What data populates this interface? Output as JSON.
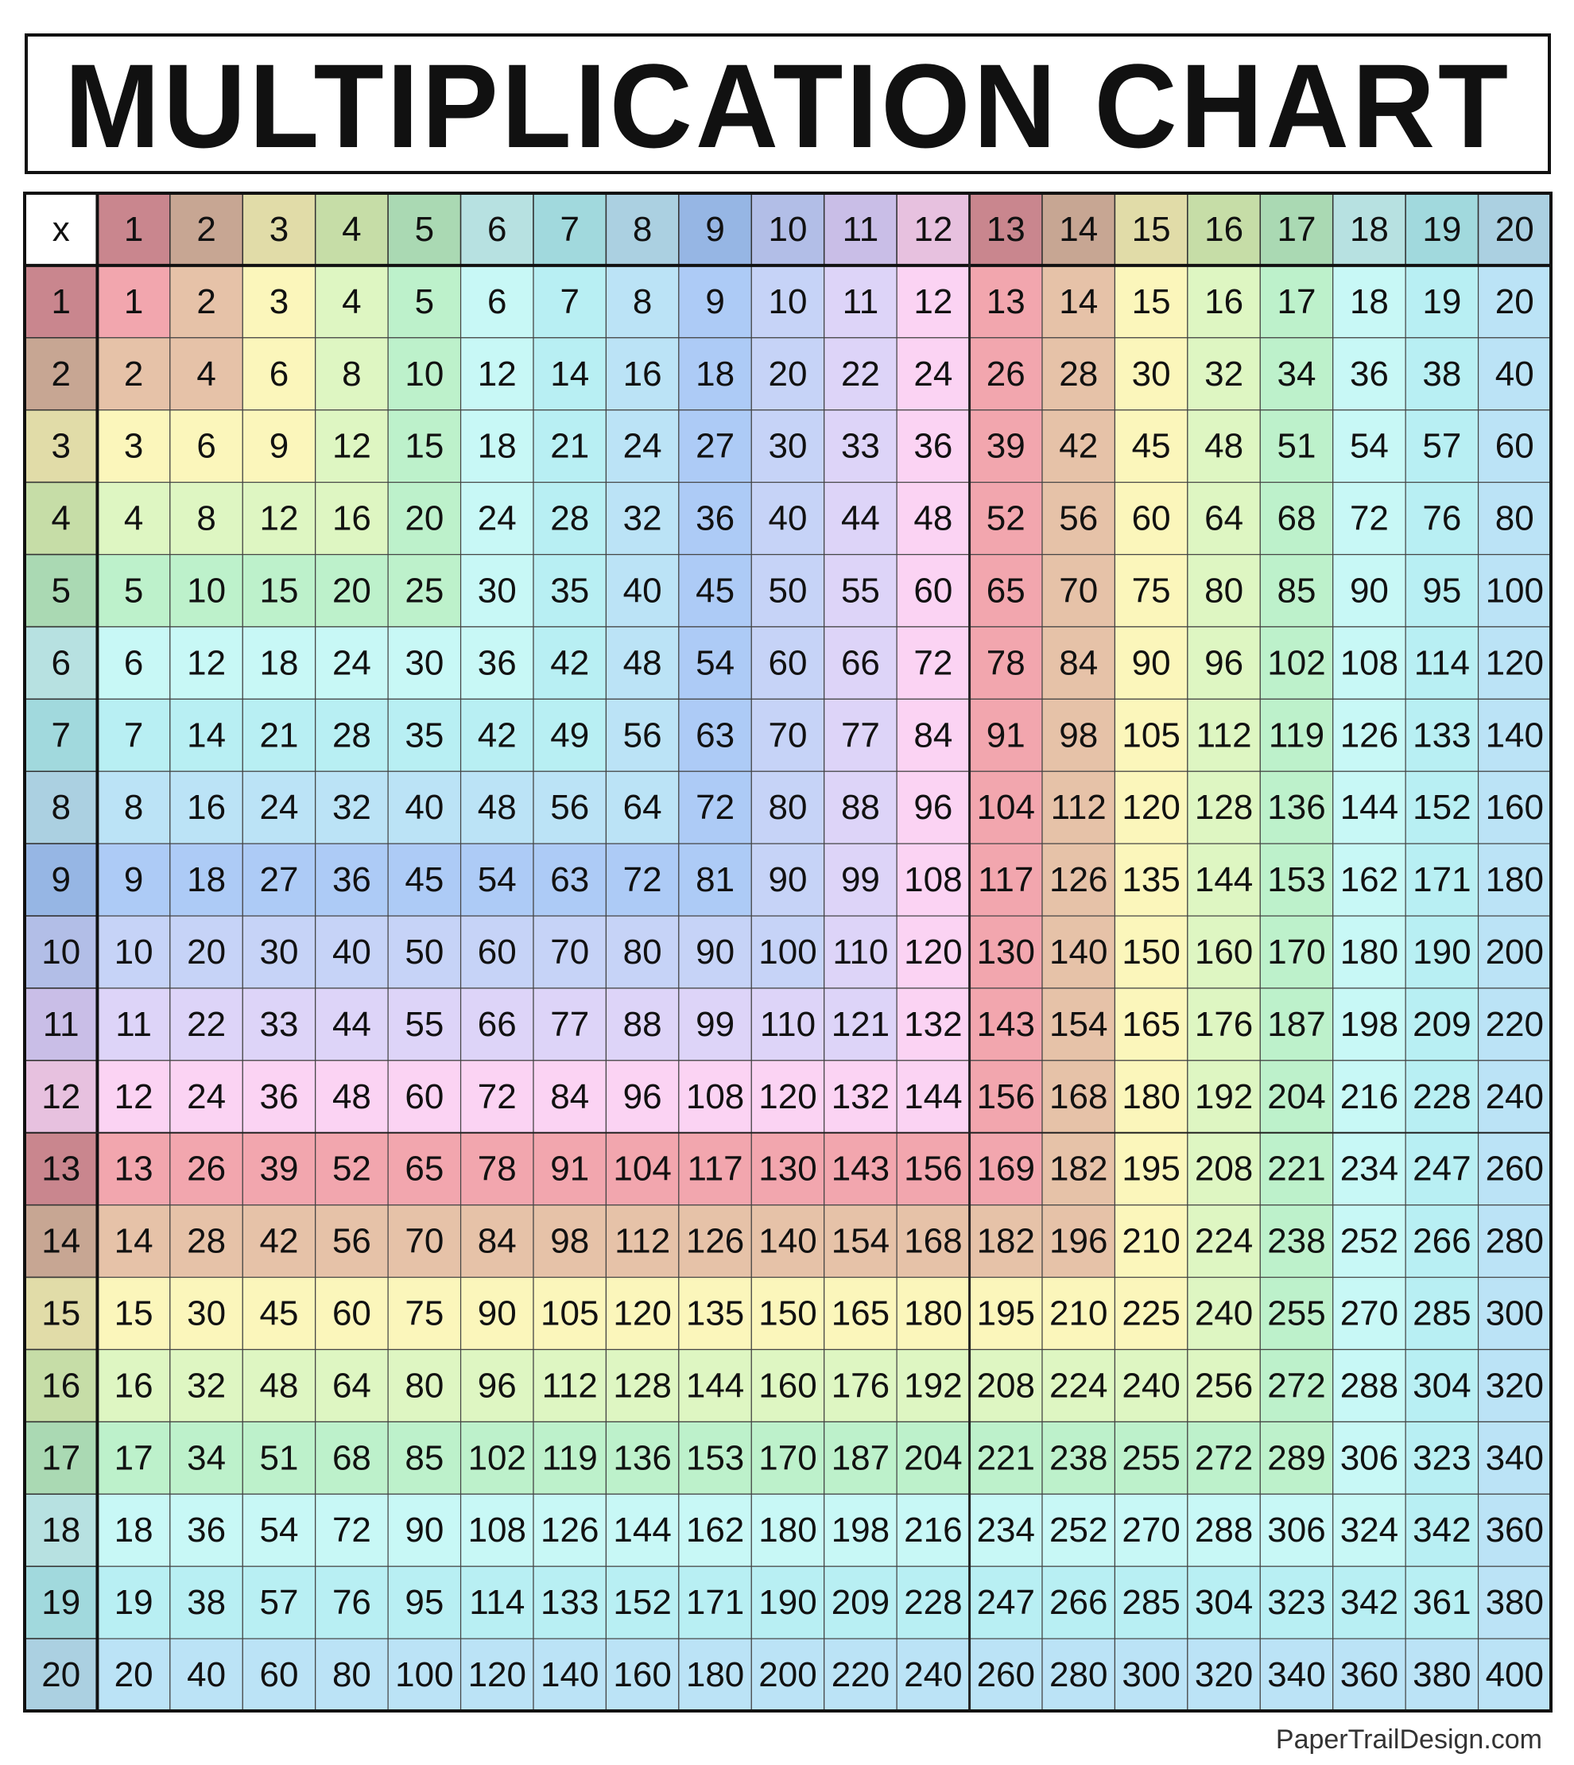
{
  "title": "MULTIPLICATION CHART",
  "table": {
    "corner": "x",
    "columns": [
      1,
      2,
      3,
      4,
      5,
      6,
      7,
      8,
      9,
      10,
      11,
      12,
      13,
      14,
      15,
      16,
      17,
      18,
      19,
      20
    ],
    "row_labels": [
      1,
      2,
      3,
      4,
      5,
      6,
      7,
      8,
      9,
      10,
      11,
      12,
      13,
      14,
      15,
      16,
      17,
      18,
      19,
      20
    ],
    "rows": [
      [
        1,
        2,
        3,
        4,
        5,
        6,
        7,
        8,
        9,
        10,
        11,
        12,
        13,
        14,
        15,
        16,
        17,
        18,
        19,
        20
      ],
      [
        2,
        4,
        6,
        8,
        10,
        12,
        14,
        16,
        18,
        20,
        22,
        24,
        26,
        28,
        30,
        32,
        34,
        36,
        38,
        40
      ],
      [
        3,
        6,
        9,
        12,
        15,
        18,
        21,
        24,
        27,
        30,
        33,
        36,
        39,
        42,
        45,
        48,
        51,
        54,
        57,
        60
      ],
      [
        4,
        8,
        12,
        16,
        20,
        24,
        28,
        32,
        36,
        40,
        44,
        48,
        52,
        56,
        60,
        64,
        68,
        72,
        76,
        80
      ],
      [
        5,
        10,
        15,
        20,
        25,
        30,
        35,
        40,
        45,
        50,
        55,
        60,
        65,
        70,
        75,
        80,
        85,
        90,
        95,
        100
      ],
      [
        6,
        12,
        18,
        24,
        30,
        36,
        42,
        48,
        54,
        60,
        66,
        72,
        78,
        84,
        90,
        96,
        102,
        108,
        114,
        120
      ],
      [
        7,
        14,
        21,
        28,
        35,
        42,
        49,
        56,
        63,
        70,
        77,
        84,
        91,
        98,
        105,
        112,
        119,
        126,
        133,
        140
      ],
      [
        8,
        16,
        24,
        32,
        40,
        48,
        56,
        64,
        72,
        80,
        88,
        96,
        104,
        112,
        120,
        128,
        136,
        144,
        152,
        160
      ],
      [
        9,
        18,
        27,
        36,
        45,
        54,
        63,
        72,
        81,
        90,
        99,
        108,
        117,
        126,
        135,
        144,
        153,
        162,
        171,
        180
      ],
      [
        10,
        20,
        30,
        40,
        50,
        60,
        70,
        80,
        90,
        100,
        110,
        120,
        130,
        140,
        150,
        160,
        170,
        180,
        190,
        200
      ],
      [
        11,
        22,
        33,
        44,
        55,
        66,
        77,
        88,
        99,
        110,
        121,
        132,
        143,
        154,
        165,
        176,
        187,
        198,
        209,
        220
      ],
      [
        12,
        24,
        36,
        48,
        60,
        72,
        84,
        96,
        108,
        120,
        132,
        144,
        156,
        168,
        180,
        192,
        204,
        216,
        228,
        240
      ],
      [
        13,
        26,
        39,
        52,
        65,
        78,
        91,
        104,
        117,
        130,
        143,
        156,
        169,
        182,
        195,
        208,
        221,
        234,
        247,
        260
      ],
      [
        14,
        28,
        42,
        56,
        70,
        84,
        98,
        112,
        126,
        140,
        154,
        168,
        182,
        196,
        210,
        224,
        238,
        252,
        266,
        280
      ],
      [
        15,
        30,
        45,
        60,
        75,
        90,
        105,
        120,
        135,
        150,
        165,
        180,
        195,
        210,
        225,
        240,
        255,
        270,
        285,
        300
      ],
      [
        16,
        32,
        48,
        64,
        80,
        96,
        112,
        128,
        144,
        160,
        176,
        192,
        208,
        224,
        240,
        256,
        272,
        288,
        304,
        320
      ],
      [
        17,
        34,
        51,
        68,
        85,
        102,
        119,
        136,
        153,
        170,
        187,
        204,
        221,
        238,
        255,
        272,
        289,
        306,
        323,
        340
      ],
      [
        18,
        36,
        54,
        72,
        90,
        108,
        126,
        144,
        162,
        180,
        198,
        216,
        234,
        252,
        270,
        288,
        306,
        324,
        342,
        360
      ],
      [
        19,
        38,
        57,
        76,
        95,
        114,
        133,
        152,
        171,
        190,
        209,
        228,
        247,
        266,
        285,
        304,
        323,
        342,
        361,
        380
      ],
      [
        20,
        40,
        60,
        80,
        100,
        120,
        140,
        160,
        180,
        200,
        220,
        240,
        260,
        280,
        300,
        320,
        340,
        360,
        380,
        400
      ]
    ]
  },
  "footer": "PaperTrailDesign.com"
}
